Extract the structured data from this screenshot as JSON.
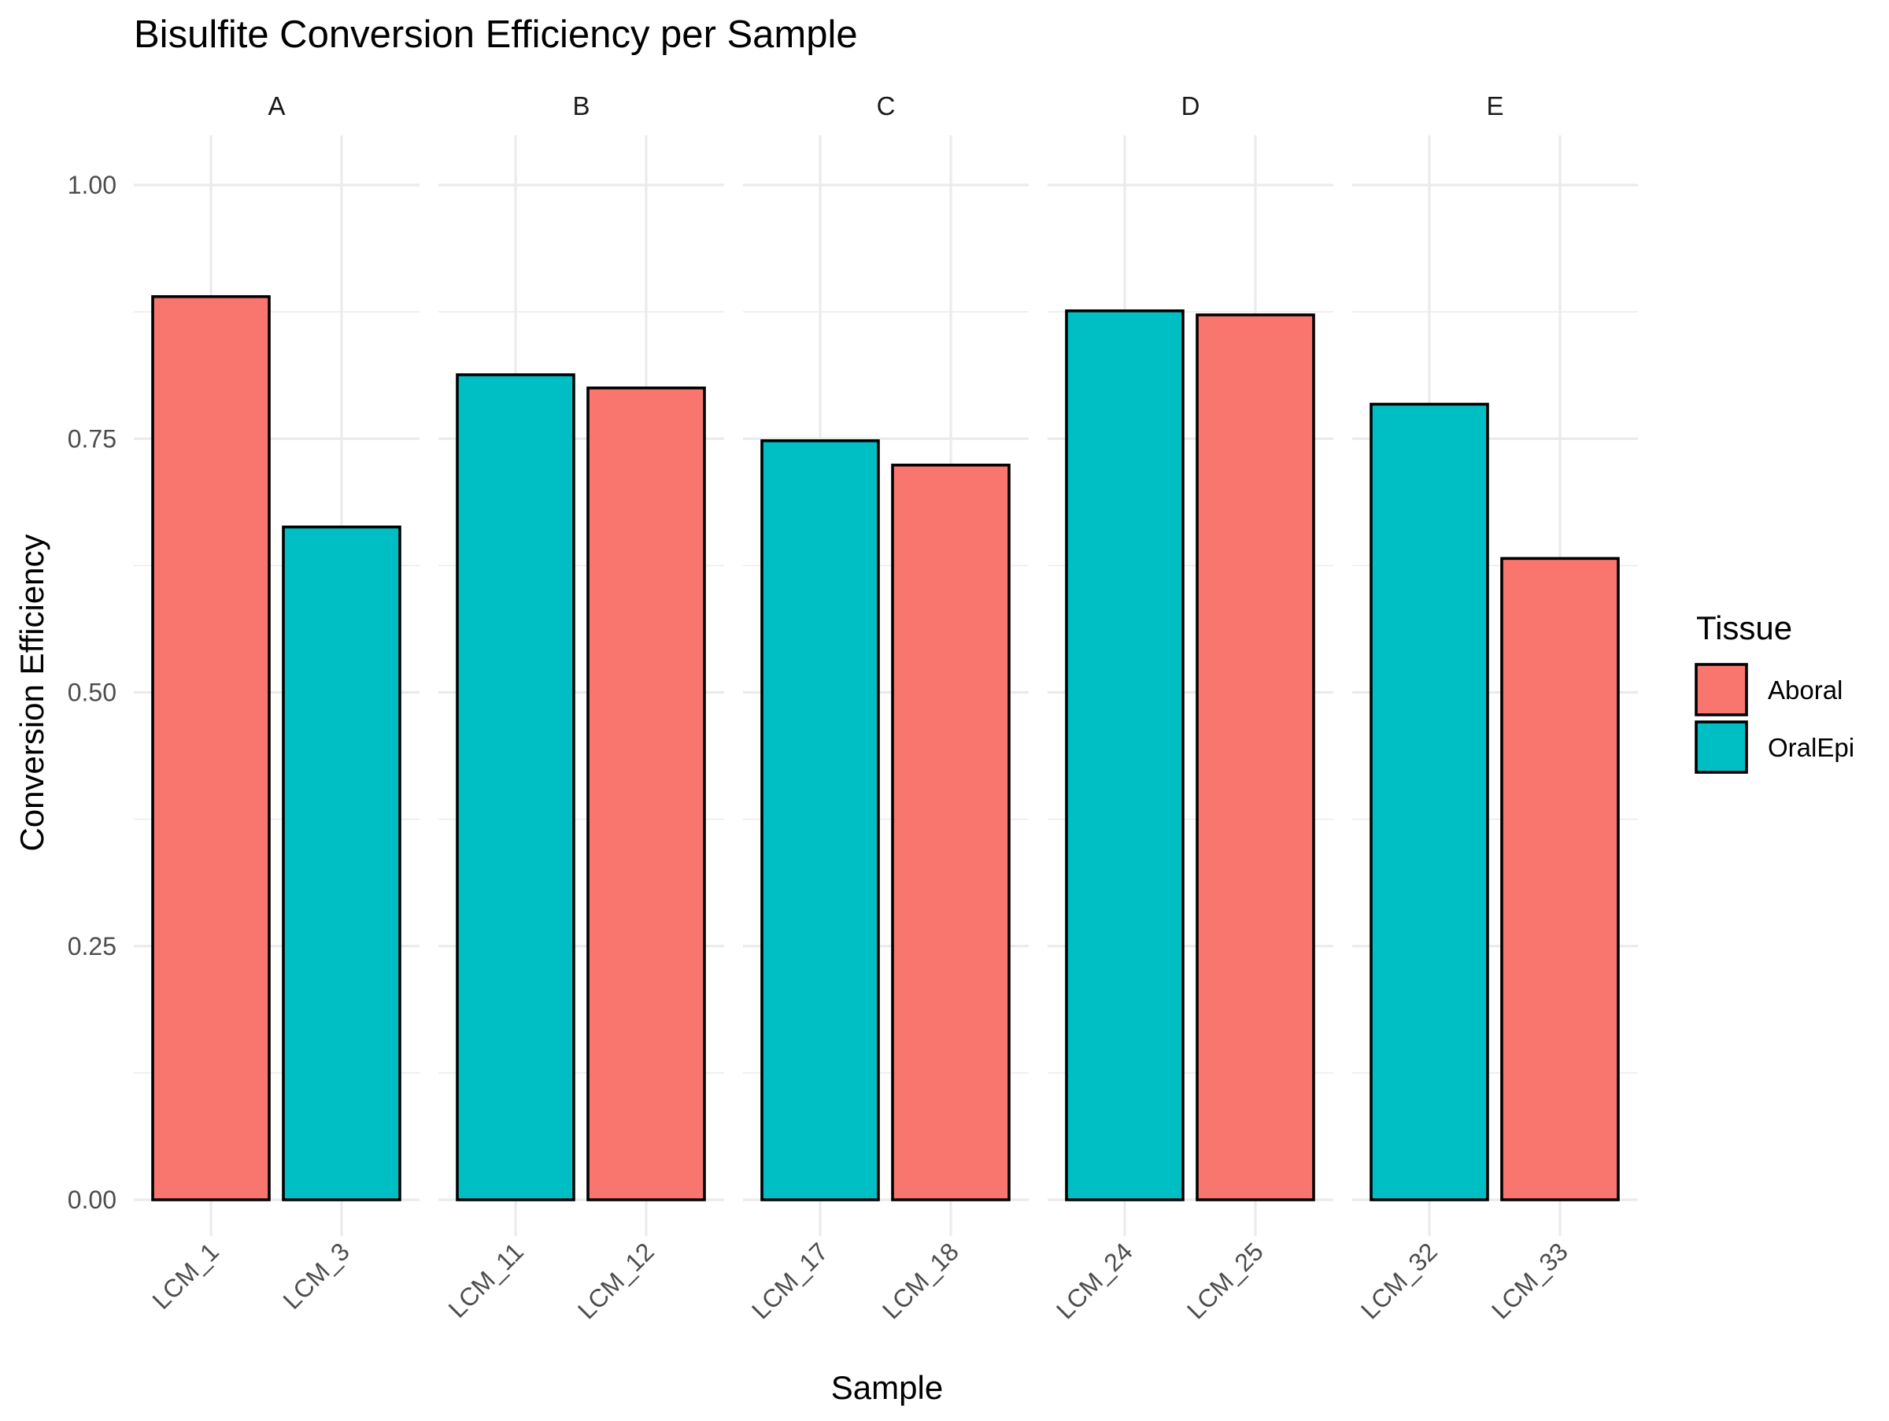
{
  "chart_data": {
    "type": "bar",
    "title": "Bisulfite Conversion Efficiency per Sample",
    "xlabel": "Sample",
    "ylabel": "Conversion Efficiency",
    "ylim": [
      0,
      1.05
    ],
    "y_ticks": [
      "0.00",
      "0.25",
      "0.50",
      "0.75",
      "1.00"
    ],
    "y_tick_values": [
      0,
      0.25,
      0.5,
      0.75,
      1.0
    ],
    "grid": true,
    "legend": {
      "title": "Tissue",
      "position": "right",
      "entries": [
        {
          "name": "Aboral",
          "color": "#F8766D"
        },
        {
          "name": "OralEpi",
          "color": "#00BFC4"
        }
      ]
    },
    "facets": [
      {
        "label": "A",
        "bars": [
          {
            "sample": "LCM_1",
            "tissue": "Aboral",
            "value": 0.89
          },
          {
            "sample": "LCM_3",
            "tissue": "OralEpi",
            "value": 0.663
          }
        ]
      },
      {
        "label": "B",
        "bars": [
          {
            "sample": "LCM_11",
            "tissue": "OralEpi",
            "value": 0.813
          },
          {
            "sample": "LCM_12",
            "tissue": "Aboral",
            "value": 0.8
          }
        ]
      },
      {
        "label": "C",
        "bars": [
          {
            "sample": "LCM_17",
            "tissue": "OralEpi",
            "value": 0.748
          },
          {
            "sample": "LCM_18",
            "tissue": "Aboral",
            "value": 0.724
          }
        ]
      },
      {
        "label": "D",
        "bars": [
          {
            "sample": "LCM_24",
            "tissue": "OralEpi",
            "value": 0.876
          },
          {
            "sample": "LCM_25",
            "tissue": "Aboral",
            "value": 0.872
          }
        ]
      },
      {
        "label": "E",
        "bars": [
          {
            "sample": "LCM_32",
            "tissue": "OralEpi",
            "value": 0.784
          },
          {
            "sample": "LCM_33",
            "tissue": "Aboral",
            "value": 0.632
          }
        ]
      }
    ]
  }
}
